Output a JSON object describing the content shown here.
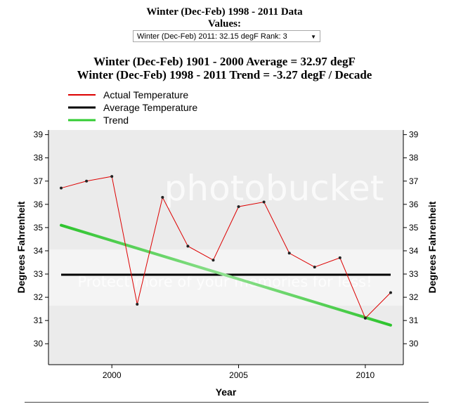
{
  "header": {
    "title": "Winter (Dec-Feb) 1998 - 2011 Data",
    "values_label": "Values:",
    "selected_option": "Winter (Dec-Feb) 2011: 32.15 degF  Rank: 3",
    "average_line": "Winter (Dec-Feb) 1901 - 2000 Average = 32.97 degF",
    "trend_line": "Winter (Dec-Feb) 1998 - 2011 Trend = -3.27 degF / Decade"
  },
  "chart_data": {
    "type": "line",
    "xlabel": "Year",
    "ylabel": "Degrees Fahrenheit",
    "xlim": [
      1997.5,
      2011.5
    ],
    "ylim": [
      29.1,
      39.2
    ],
    "x_ticks": [
      2000,
      2005,
      2010
    ],
    "y_ticks": [
      30,
      31,
      32,
      33,
      34,
      35,
      36,
      37,
      38,
      39
    ],
    "grid": false,
    "legend_position": "top-left",
    "series": [
      {
        "name": "Actual Temperature",
        "color": "#dd0000",
        "x": [
          1998,
          1999,
          2000,
          2001,
          2002,
          2003,
          2004,
          2005,
          2006,
          2007,
          2008,
          2009,
          2010,
          2011
        ],
        "y": [
          36.7,
          37.0,
          37.2,
          31.7,
          36.3,
          34.2,
          33.6,
          35.9,
          36.1,
          33.9,
          33.3,
          33.7,
          31.1,
          32.2
        ]
      },
      {
        "name": "Average Temperature",
        "color": "#000000",
        "x": [
          1998,
          2011
        ],
        "y": [
          32.97,
          32.97
        ]
      },
      {
        "name": "Trend",
        "color": "#33cc33",
        "x": [
          1998,
          2011
        ],
        "y": [
          35.1,
          30.8
        ]
      }
    ]
  },
  "watermark": {
    "text": "photobucket",
    "subtext": "Protect more of your memories for less!"
  }
}
